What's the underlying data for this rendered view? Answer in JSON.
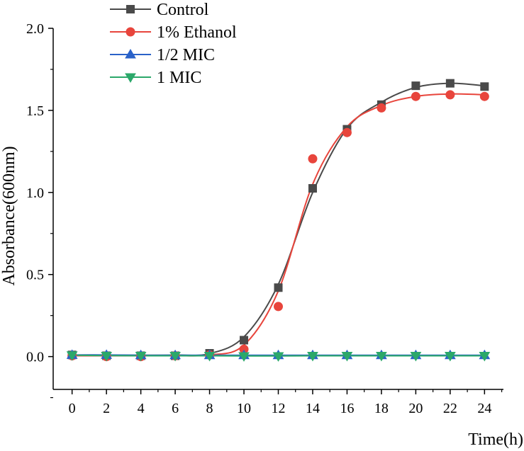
{
  "chart_data": {
    "type": "line",
    "xlabel": "Time(h)",
    "ylabel": "Absorbance(600nm)",
    "xlim": [
      -1.1,
      25.1
    ],
    "ylim": [
      -0.2,
      2.0
    ],
    "x_ticks": [
      0,
      2,
      4,
      6,
      8,
      10,
      12,
      14,
      16,
      18,
      20,
      22,
      24
    ],
    "x_tick_labels": [
      "0",
      "2",
      "4",
      "6",
      "8",
      "10",
      "12",
      "14",
      "16",
      "18",
      "20",
      "22",
      "24"
    ],
    "y_ticks": [
      0.0,
      0.5,
      1.0,
      1.5,
      2.0
    ],
    "y_tick_labels": [
      "0.0",
      "0.5",
      "1.0",
      "1.5",
      "2.0"
    ],
    "grid": false,
    "legend_position": "top-left",
    "x": [
      0,
      2,
      4,
      6,
      8,
      10,
      12,
      14,
      16,
      18,
      20,
      22,
      24
    ],
    "series": [
      {
        "name": "Control",
        "color": "#4a4a4a",
        "marker": "square",
        "values": [
          0.01,
          0.005,
          0.005,
          0.005,
          0.02,
          0.1,
          0.42,
          1.025,
          1.385,
          1.535,
          1.65,
          1.665,
          1.645
        ],
        "fit": [
          0.008,
          0.008,
          0.008,
          0.009,
          0.018,
          0.12,
          0.44,
          1.0,
          1.39,
          1.55,
          1.64,
          1.665,
          1.65
        ]
      },
      {
        "name": "1% Ethanol",
        "color": "#e8453c",
        "marker": "circle",
        "values": [
          0.005,
          0.0,
          0.0,
          0.005,
          0.01,
          0.045,
          0.305,
          1.205,
          1.365,
          1.515,
          1.585,
          1.595,
          1.585
        ],
        "fit": [
          0.005,
          0.005,
          0.005,
          0.006,
          0.01,
          0.07,
          0.4,
          1.05,
          1.4,
          1.53,
          1.585,
          1.6,
          1.595
        ]
      },
      {
        "name": "1/2 MIC",
        "color": "#2a62c9",
        "marker": "triangle-up",
        "values": [
          0.01,
          0.01,
          0.008,
          0.008,
          0.008,
          0.008,
          0.008,
          0.008,
          0.008,
          0.008,
          0.008,
          0.008,
          0.008
        ],
        "fit": [
          0.01,
          0.01,
          0.008,
          0.008,
          0.008,
          0.008,
          0.008,
          0.008,
          0.008,
          0.008,
          0.008,
          0.008,
          0.008
        ]
      },
      {
        "name": "1 MIC",
        "color": "#2ba86a",
        "marker": "triangle-down",
        "values": [
          0.008,
          0.005,
          0.005,
          0.005,
          0.005,
          0.003,
          0.003,
          0.005,
          0.005,
          0.005,
          0.005,
          0.005,
          0.005
        ],
        "fit": [
          0.008,
          0.006,
          0.005,
          0.005,
          0.005,
          0.004,
          0.004,
          0.005,
          0.005,
          0.005,
          0.005,
          0.005,
          0.005
        ]
      }
    ]
  }
}
